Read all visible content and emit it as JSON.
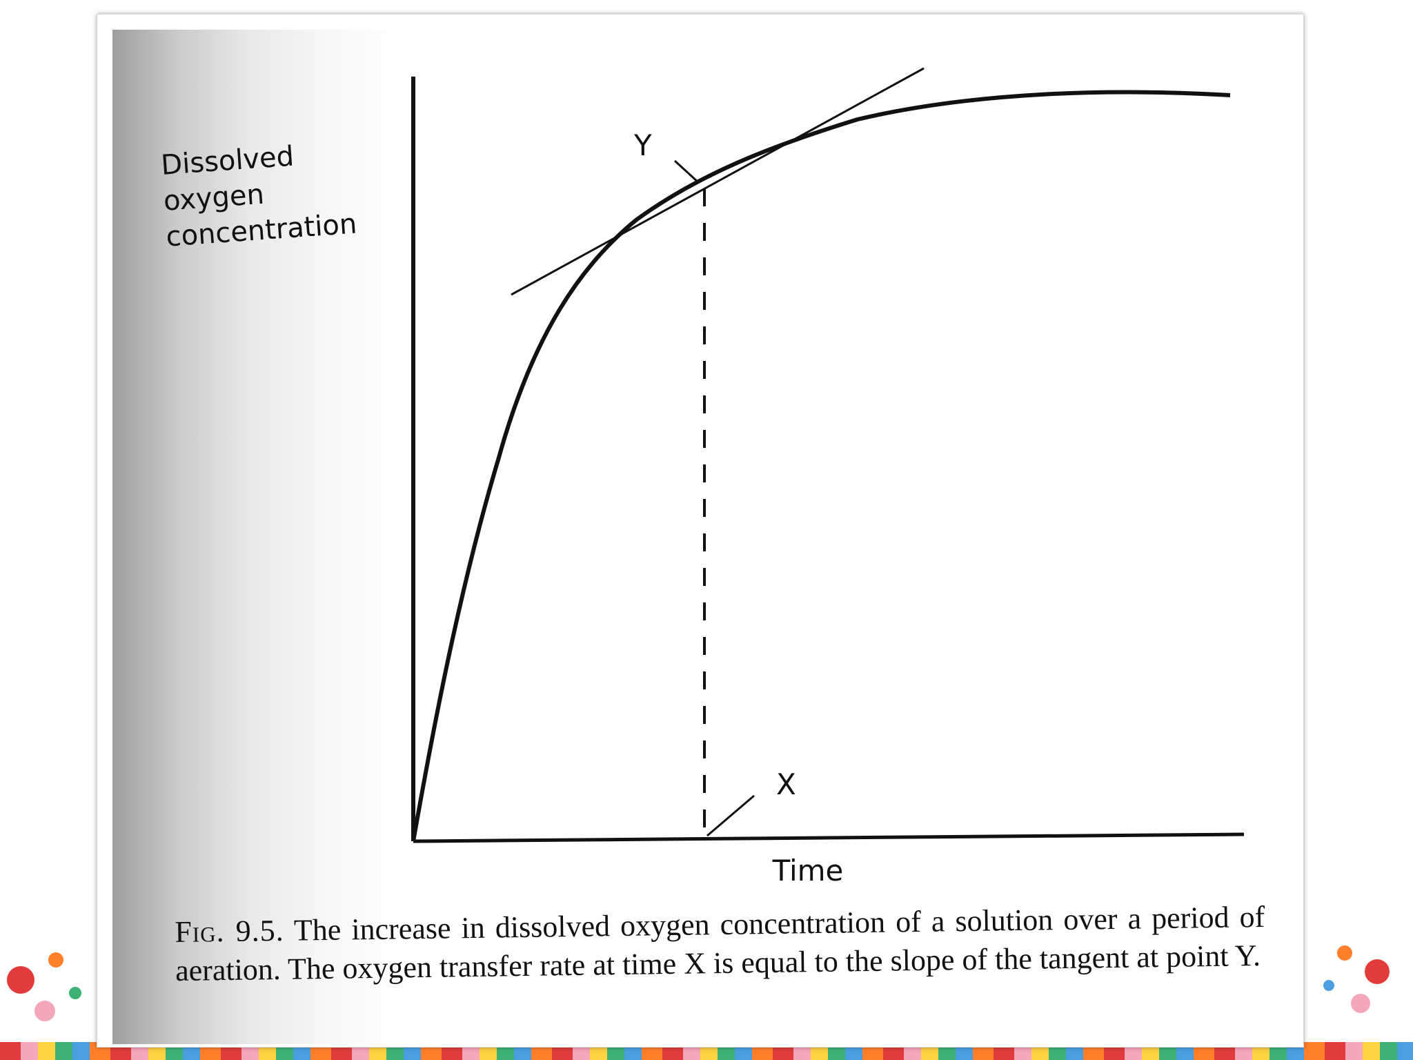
{
  "diagram": {
    "y_axis_label": [
      "Dissolved",
      "oxygen",
      "concentration"
    ],
    "x_axis_label": "Time",
    "point_labels": {
      "tangent_point": "Y",
      "time_point": "X"
    }
  },
  "caption": {
    "fig_label": "Fig. 9.5.",
    "text": "The increase in dissolved oxygen concentration of a solution over a period of aeration. The oxygen transfer rate at time X is equal to the slope of the tangent at point Y."
  },
  "colors": {
    "ink": "#111111",
    "decoration": [
      "#e23b3b",
      "#f4a7b9",
      "#ffd23f",
      "#3bb273",
      "#4b9fe1",
      "#ff7f2a"
    ]
  }
}
